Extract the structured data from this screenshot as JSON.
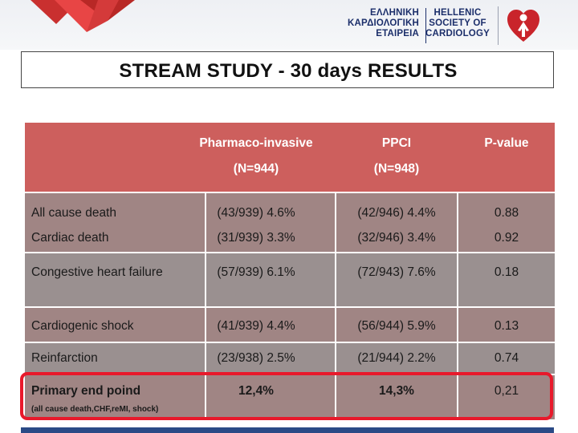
{
  "header": {
    "greek_line1": "ΕΛΛΗΝΙΚΗ",
    "greek_line2": "ΚΑΡΔΙΟΛΟΓΙΚΗ",
    "greek_line3": "ΕΤΑΙΡΕΙΑ",
    "english_line1": "HELLENIC",
    "english_line2": "SOCIETY OF",
    "english_line3": "CARDIOLOGY",
    "logo_icon": "heart-figure-icon"
  },
  "title": "STREAM STUDY - 30 days RESULTS",
  "table": {
    "headers": {
      "col2_line1": "Pharmaco-invasive",
      "col2_line2": "(N=944)",
      "col3_line1": "PPCI",
      "col3_line2": "(N=948)",
      "col4": "P-value"
    },
    "rows": [
      {
        "label": "All cause death",
        "pharmaco": "(43/939) 4.6%",
        "ppci": "(42/946) 4.4%",
        "p": "0.88"
      },
      {
        "label": "Cardiac death",
        "pharmaco": "(31/939) 3.3%",
        "ppci": "(32/946) 3.4%",
        "p": "0.92"
      },
      {
        "label": "Congestive heart failure",
        "pharmaco": "(57/939) 6.1%",
        "ppci": "(72/943) 7.6%",
        "p": "0.18"
      },
      {
        "label": "Cardiogenic shock",
        "pharmaco": "(41/939) 4.4%",
        "ppci": "(56/944) 5.9%",
        "p": "0.13"
      },
      {
        "label": "Reinfarction",
        "pharmaco": "(23/938) 2.5%",
        "ppci": "(21/944) 2.2%",
        "p": "0.74"
      }
    ],
    "primary": {
      "label": "Primary end poind",
      "sublabel": "(all cause death,CHF,reMI, shock)",
      "pharmaco": "12,4%",
      "ppci": "14,3%",
      "p": "0,21"
    }
  },
  "colors": {
    "header_band": "#cd5f5d",
    "row_light": "#a08584",
    "row_dark": "#9a9090",
    "highlight": "#e8192b",
    "text_dark": "#1c2f6b"
  }
}
